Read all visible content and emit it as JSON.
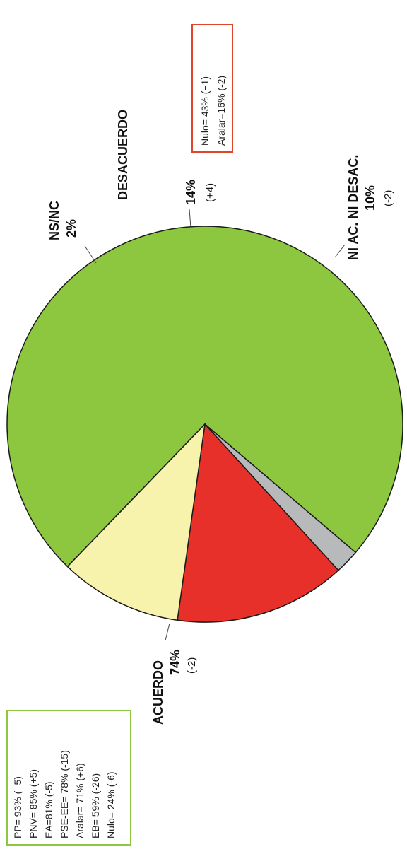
{
  "chart_data": {
    "type": "pie",
    "slices": [
      {
        "label": "ACUERDO",
        "value": 74,
        "value_label": "74%",
        "change_label": "(-2)",
        "color": "#8dc63f"
      },
      {
        "label": "NS/NC",
        "value": 2,
        "value_label": "2%",
        "change_label": "",
        "color": "#b8b9bb"
      },
      {
        "label": "DESACUERDO",
        "value": 14,
        "value_label": "14%",
        "change_label": "(+4)",
        "color": "#e8302a"
      },
      {
        "label": "NI AC. NI DESAC.",
        "value": 10,
        "value_label": "10%",
        "change_label": "(-2)",
        "color": "#f7f3ad"
      }
    ],
    "annotations": {
      "green_box": {
        "border_color": "#8dc63f",
        "lines": [
          "PP= 93% (+5)",
          "PNV= 85% (+5)",
          "EA=81% (-5)",
          "PSE-EE= 78% (-15)",
          "Aralar= 71% (+6)",
          "EB= 59% (-26)",
          "Nulo= 24% (-6)"
        ]
      },
      "red_box": {
        "border_color": "#e0442b",
        "lines": [
          "Nulo= 43% (+1)",
          "Aralar=16% (-2)"
        ]
      }
    }
  }
}
